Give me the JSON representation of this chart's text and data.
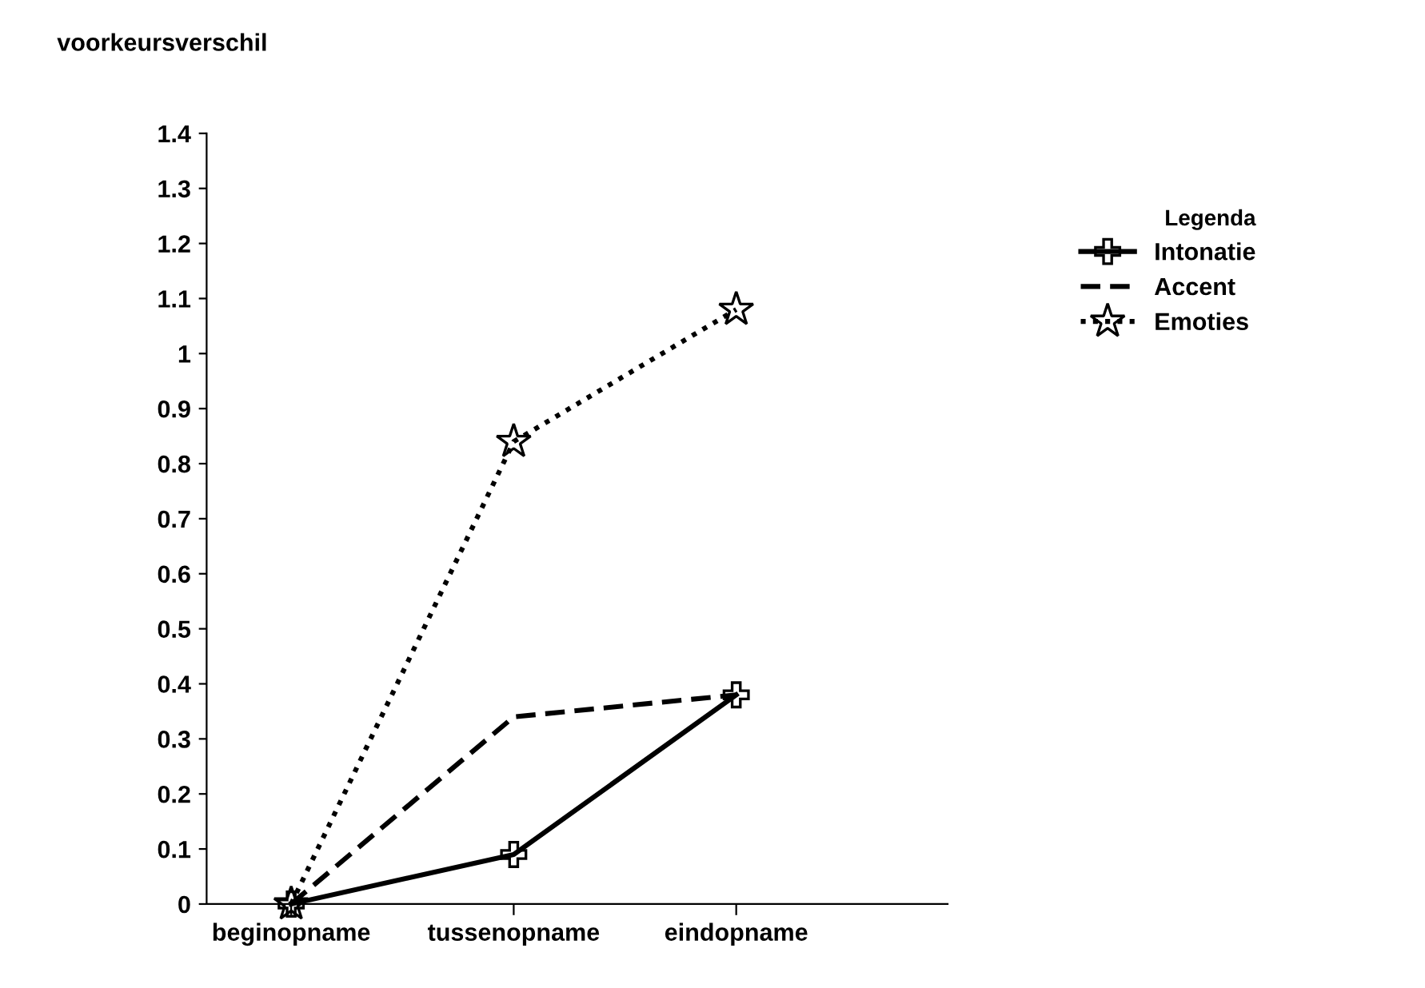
{
  "chart_data": {
    "type": "line",
    "ylabel": "voorkeursverschil",
    "legend_title": "Legenda",
    "categories": [
      "beginopname",
      "tussenopname",
      "eindopname"
    ],
    "series": [
      {
        "name": "Intonatie",
        "color": "#000000",
        "values": [
          0,
          0.09,
          0.38
        ],
        "line_style": "solid",
        "marker": "cross"
      },
      {
        "name": "Accent",
        "color": "#000000",
        "values": [
          0,
          0.34,
          0.38
        ],
        "line_style": "dashed",
        "marker": "none"
      },
      {
        "name": "Emoties",
        "color": "#000000",
        "values": [
          0,
          0.84,
          1.08
        ],
        "line_style": "dotted",
        "marker": "star"
      }
    ],
    "ylim": [
      0,
      1.4
    ],
    "yticks": [
      0,
      0.1,
      0.2,
      0.3,
      0.4,
      0.5,
      0.6,
      0.7,
      0.8,
      0.9,
      1,
      1.1,
      1.2,
      1.3,
      1.4
    ],
    "grid": false,
    "legend": "right"
  }
}
